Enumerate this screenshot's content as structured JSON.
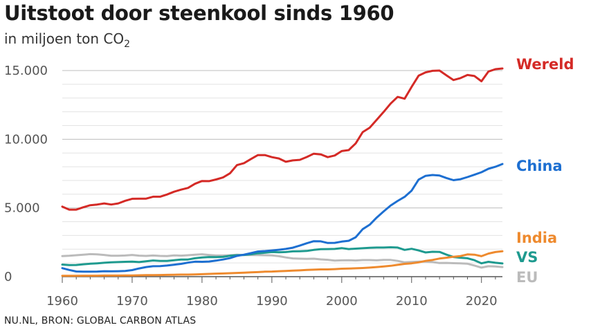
{
  "chart_data": {
    "type": "line",
    "title": "Uitstoot door steenkool sinds 1960",
    "subtitle_main": "in miljoen ton CO",
    "subtitle_sub": "2",
    "source": "NU.NL, BRON: GLOBAL CARBON ATLAS",
    "xlim": [
      1960,
      2023
    ],
    "ylim": [
      0,
      15000
    ],
    "x_ticks": [
      {
        "value": 1960,
        "label": "1960"
      },
      {
        "value": 1970,
        "label": "1970"
      },
      {
        "value": 1980,
        "label": "1980"
      },
      {
        "value": 1990,
        "label": "1990"
      },
      {
        "value": 2000,
        "label": "2000"
      },
      {
        "value": 2010,
        "label": "2010"
      },
      {
        "value": 2020,
        "label": "2020"
      }
    ],
    "y_ticks": [
      {
        "value": 0,
        "label": "0"
      },
      {
        "value": 5000,
        "label": "5.000"
      },
      {
        "value": 10000,
        "label": "10.000"
      },
      {
        "value": 15000,
        "label": "15.000"
      }
    ],
    "grid": true,
    "x": [
      1960,
      1961,
      1962,
      1963,
      1964,
      1965,
      1966,
      1967,
      1968,
      1969,
      1970,
      1971,
      1972,
      1973,
      1974,
      1975,
      1976,
      1977,
      1978,
      1979,
      1980,
      1981,
      1982,
      1983,
      1984,
      1985,
      1986,
      1987,
      1988,
      1989,
      1990,
      1991,
      1992,
      1993,
      1994,
      1995,
      1996,
      1997,
      1998,
      1999,
      2000,
      2001,
      2002,
      2003,
      2004,
      2005,
      2006,
      2007,
      2008,
      2009,
      2010,
      2011,
      2012,
      2013,
      2014,
      2015,
      2016,
      2017,
      2018,
      2019,
      2020,
      2021,
      2022,
      2023
    ],
    "series": [
      {
        "name": "Wereld",
        "color": "#d42a26",
        "values": [
          5100,
          4880,
          4880,
          5050,
          5200,
          5250,
          5330,
          5250,
          5330,
          5520,
          5670,
          5680,
          5680,
          5820,
          5820,
          5980,
          6180,
          6330,
          6460,
          6760,
          6960,
          6950,
          7070,
          7220,
          7520,
          8120,
          8260,
          8560,
          8850,
          8850,
          8700,
          8600,
          8360,
          8460,
          8500,
          8710,
          8950,
          8900,
          8700,
          8820,
          9140,
          9210,
          9700,
          10520,
          10840,
          11410,
          11990,
          12600,
          13080,
          12950,
          13810,
          14630,
          14870,
          14980,
          15000,
          14650,
          14310,
          14450,
          14680,
          14600,
          14220,
          14930,
          15100,
          15150
        ]
      },
      {
        "name": "China",
        "color": "#1d6fd1",
        "values": [
          620,
          490,
          380,
          360,
          360,
          370,
          400,
          390,
          400,
          420,
          480,
          600,
          700,
          760,
          770,
          810,
          870,
          930,
          1020,
          1090,
          1080,
          1100,
          1170,
          1250,
          1350,
          1510,
          1600,
          1710,
          1830,
          1860,
          1910,
          1960,
          2020,
          2110,
          2260,
          2430,
          2580,
          2570,
          2450,
          2460,
          2550,
          2610,
          2870,
          3460,
          3780,
          4300,
          4750,
          5180,
          5510,
          5810,
          6260,
          7060,
          7340,
          7400,
          7360,
          7180,
          7020,
          7090,
          7250,
          7420,
          7600,
          7850,
          8000,
          8200
        ]
      },
      {
        "name": "India",
        "color": "#ee8a2e",
        "values": [
          60,
          60,
          60,
          70,
          70,
          70,
          80,
          80,
          80,
          90,
          90,
          100,
          110,
          110,
          120,
          130,
          140,
          150,
          150,
          160,
          180,
          200,
          220,
          230,
          250,
          270,
          290,
          310,
          330,
          360,
          370,
          400,
          420,
          440,
          460,
          490,
          510,
          530,
          530,
          550,
          580,
          590,
          610,
          630,
          660,
          700,
          740,
          790,
          860,
          930,
          970,
          1040,
          1150,
          1220,
          1320,
          1380,
          1450,
          1500,
          1620,
          1600,
          1490,
          1680,
          1790,
          1850
        ]
      },
      {
        "name": "VS",
        "color": "#1e9a8f",
        "values": [
          880,
          840,
          850,
          900,
          940,
          970,
          1010,
          1040,
          1060,
          1080,
          1090,
          1060,
          1120,
          1180,
          1150,
          1150,
          1200,
          1250,
          1250,
          1340,
          1400,
          1430,
          1420,
          1440,
          1520,
          1560,
          1580,
          1630,
          1700,
          1740,
          1790,
          1770,
          1790,
          1840,
          1850,
          1870,
          1950,
          2000,
          2010,
          2020,
          2080,
          2010,
          2040,
          2070,
          2100,
          2120,
          2120,
          2140,
          2120,
          1950,
          2030,
          1910,
          1760,
          1810,
          1800,
          1600,
          1430,
          1380,
          1340,
          1200,
          970,
          1080,
          1010,
          960
        ]
      },
      {
        "name": "EU",
        "color": "#bbbbbb",
        "values": [
          1500,
          1520,
          1560,
          1600,
          1640,
          1620,
          1580,
          1520,
          1520,
          1540,
          1580,
          1530,
          1510,
          1540,
          1510,
          1500,
          1550,
          1530,
          1560,
          1600,
          1630,
          1580,
          1540,
          1540,
          1560,
          1600,
          1570,
          1580,
          1570,
          1560,
          1550,
          1490,
          1400,
          1330,
          1310,
          1300,
          1310,
          1260,
          1230,
          1170,
          1190,
          1200,
          1180,
          1210,
          1210,
          1190,
          1220,
          1220,
          1150,
          1040,
          1070,
          1090,
          1090,
          1060,
          990,
          1000,
          980,
          970,
          940,
          810,
          660,
          760,
          740,
          700
        ]
      }
    ]
  }
}
